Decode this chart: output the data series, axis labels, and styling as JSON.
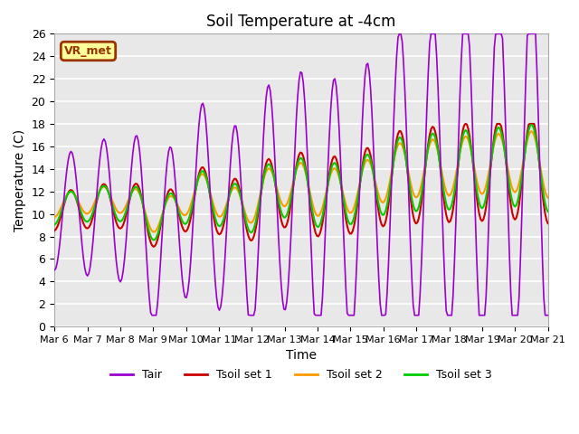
{
  "title": "Soil Temperature at -4cm",
  "xlabel": "Time",
  "ylabel": "Temperature (C)",
  "ylim": [
    0,
    26
  ],
  "xtick_labels": [
    "Mar 6",
    "Mar 7",
    "Mar 8",
    "Mar 9",
    "Mar 10",
    "Mar 11",
    "Mar 12",
    "Mar 13",
    "Mar 14",
    "Mar 15",
    "Mar 16",
    "Mar 17",
    "Mar 18",
    "Mar 19",
    "Mar 20",
    "Mar 21"
  ],
  "legend_entries": [
    "Tair",
    "Tsoil set 1",
    "Tsoil set 2",
    "Tsoil set 3"
  ],
  "line_colors": [
    "#9900cc",
    "#cc0000",
    "#ff9900",
    "#00cc00"
  ],
  "annotation_text": "VR_met",
  "annotation_bg": "#ffff99",
  "annotation_border": "#993300"
}
